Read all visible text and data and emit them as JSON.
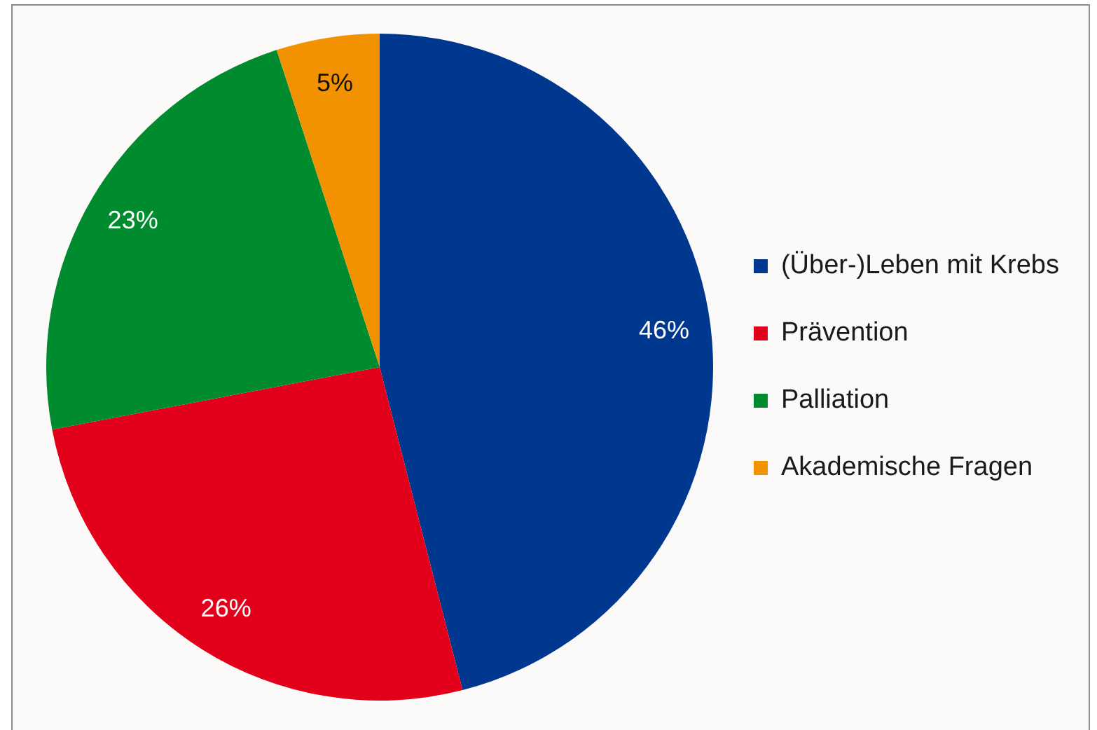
{
  "chart_data": {
    "type": "pie",
    "categories": [
      "(Über-)Leben mit Krebs",
      "Prävention",
      "Palliation",
      "Akademische Fragen"
    ],
    "values": [
      46,
      26,
      23,
      5
    ],
    "colors": [
      "#00378f",
      "#e2001a",
      "#008b2e",
      "#f39200"
    ],
    "value_labels": [
      "46%",
      "26%",
      "23%",
      "5%"
    ],
    "legend": "right"
  }
}
